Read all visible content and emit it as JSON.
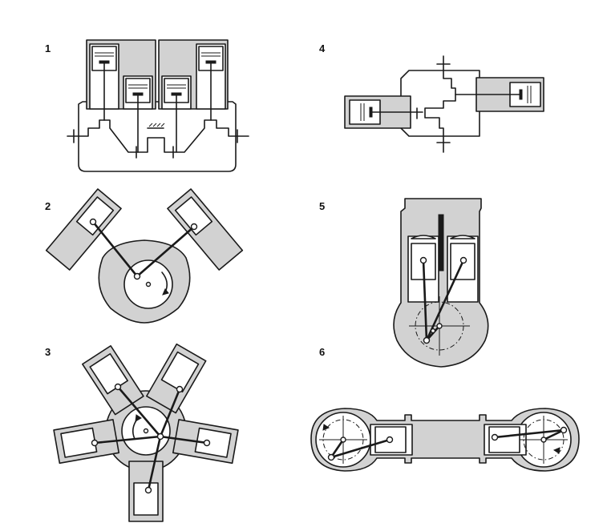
{
  "figure": {
    "labels": [
      "1",
      "2",
      "3",
      "4",
      "5",
      "6"
    ]
  }
}
